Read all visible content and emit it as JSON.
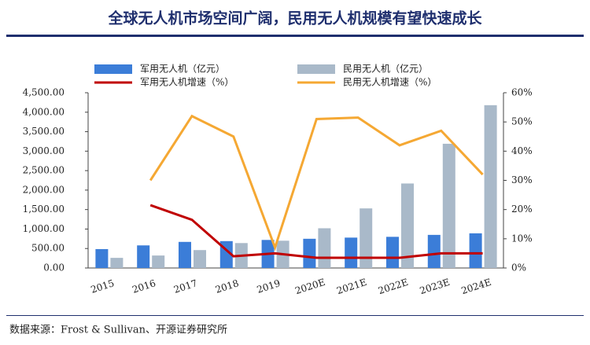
{
  "chart_data": {
    "type": "bar",
    "title": "全球无人机市场空间广阔，民用无人机规模有望快速成长",
    "source": "数据来源：Frost & Sullivan、开源证券研究所",
    "categories": [
      "2015",
      "2016",
      "2017",
      "2018",
      "2019",
      "2020E",
      "2021E",
      "2022E",
      "2023E",
      "2024E"
    ],
    "series": [
      {
        "name": "军用无人机（亿元）",
        "type": "bar",
        "color": "#3b7dd8",
        "values": [
          485,
          580,
          670,
          690,
          720,
          750,
          780,
          800,
          850,
          890
        ]
      },
      {
        "name": "民用无人机（亿元）",
        "type": "bar",
        "color": "#a9b9c9",
        "values": [
          260,
          320,
          460,
          640,
          700,
          1020,
          1530,
          2170,
          3190,
          4180
        ]
      },
      {
        "name": "军用无人机增速（%）",
        "type": "line",
        "axis": "y2",
        "color": "#c00000",
        "values": [
          null,
          21.5,
          16.5,
          4,
          5,
          3.5,
          3.5,
          3.5,
          5,
          5
        ]
      },
      {
        "name": "民用无人机增速（%）",
        "type": "line",
        "axis": "y2",
        "color": "#f5a833",
        "values": [
          null,
          30,
          52,
          45,
          7,
          51,
          51.5,
          42,
          47,
          32
        ]
      }
    ],
    "ylim": [
      0,
      4500
    ],
    "yticks": [
      {
        "value": 0,
        "label": "0.00"
      },
      {
        "value": 500,
        "label": "500.00"
      },
      {
        "value": 1000,
        "label": "1,000.00"
      },
      {
        "value": 1500,
        "label": "1,500.00"
      },
      {
        "value": 2000,
        "label": "2,000.00"
      },
      {
        "value": 2500,
        "label": "2,500.00"
      },
      {
        "value": 3000,
        "label": "3,000.00"
      },
      {
        "value": 3500,
        "label": "3,500.00"
      },
      {
        "value": 4000,
        "label": "4,000.00"
      },
      {
        "value": 4500,
        "label": "4,500.00"
      }
    ],
    "y2lim": [
      0,
      60
    ],
    "y2ticks": [
      {
        "value": 0,
        "label": "0%"
      },
      {
        "value": 10,
        "label": "10%"
      },
      {
        "value": 20,
        "label": "20%"
      },
      {
        "value": 30,
        "label": "30%"
      },
      {
        "value": 40,
        "label": "40%"
      },
      {
        "value": 50,
        "label": "50%"
      },
      {
        "value": 60,
        "label": "60%"
      }
    ]
  }
}
